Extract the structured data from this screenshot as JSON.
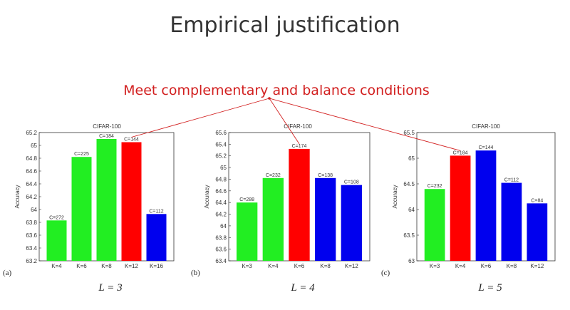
{
  "slide": {
    "title": "Empirical justification",
    "annotation": "Meet complementary and balance conditions"
  },
  "colors": {
    "green": "#22ee22",
    "red": "#ff0000",
    "blue": "#0000ee",
    "annotation": "#d21f1f"
  },
  "chart_data": [
    {
      "type": "bar",
      "panel_id": "(a)",
      "caption": "L = 3",
      "title": "CIFAR-100",
      "ylabel": "Accuracy",
      "ylim": [
        63.2,
        65.2
      ],
      "yticks": [
        "63.2",
        "63.4",
        "63.6",
        "63.8",
        "64",
        "64.2",
        "64.4",
        "64.6",
        "64.8",
        "65",
        "65.2"
      ],
      "categories": [
        "K=4",
        "K=6",
        "K=8",
        "K=12",
        "K=16"
      ],
      "values": [
        63.83,
        64.82,
        65.1,
        65.05,
        63.93
      ],
      "labels": [
        "C=272",
        "C=225",
        "C=184",
        "C=144",
        "C=112"
      ],
      "colors": [
        "green",
        "green",
        "green",
        "red",
        "blue"
      ]
    },
    {
      "type": "bar",
      "panel_id": "(b)",
      "caption": "L = 4",
      "title": "CIFAR-100",
      "ylabel": "Accuracy",
      "ylim": [
        63.4,
        65.6
      ],
      "yticks": [
        "63.4",
        "63.6",
        "63.8",
        "64",
        "64.2",
        "64.4",
        "64.6",
        "64.8",
        "65",
        "65.2",
        "65.4",
        "65.6"
      ],
      "categories": [
        "K=3",
        "K=4",
        "K=6",
        "K=8",
        "K=12"
      ],
      "values": [
        64.4,
        64.82,
        65.32,
        64.82,
        64.7
      ],
      "labels": [
        "C=288",
        "C=232",
        "C=174",
        "C=138",
        "C=108"
      ],
      "colors": [
        "green",
        "green",
        "red",
        "blue",
        "blue"
      ]
    },
    {
      "type": "bar",
      "panel_id": "(c)",
      "caption": "L = 5",
      "title": "CIFAR-100",
      "ylabel": "Accuracy",
      "ylim": [
        63,
        65.5
      ],
      "yticks": [
        "63",
        "63.5",
        "64",
        "64.5",
        "65",
        "65.5"
      ],
      "categories": [
        "K=3",
        "K=4",
        "K=6",
        "K=8",
        "K=12"
      ],
      "values": [
        64.4,
        65.05,
        65.15,
        64.52,
        64.12
      ],
      "labels": [
        "C=232",
        "C=184",
        "C=144",
        "C=112",
        "C=84"
      ],
      "colors": [
        "green",
        "red",
        "blue",
        "blue",
        "blue"
      ]
    }
  ]
}
